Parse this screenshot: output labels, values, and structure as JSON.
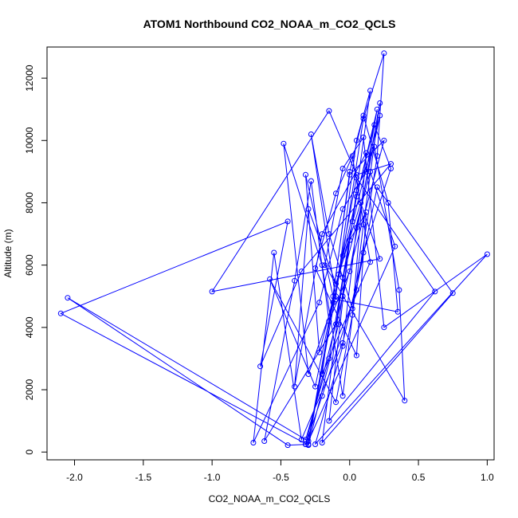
{
  "chart_data": {
    "type": "line",
    "title": "ATOM1 Northbound CO2_NOAA_m_CO2_QCLS",
    "xlabel": "CO2_NOAA_m_CO2_QCLS",
    "ylabel": "Altitude (m)",
    "xlim": [
      -2.2,
      1.05
    ],
    "ylim": [
      -250,
      13000
    ],
    "x_ticks": [
      -2.0,
      -1.5,
      -1.0,
      -0.5,
      0.0,
      0.5,
      1.0
    ],
    "x_tick_labels": [
      "-2.0",
      "-1.5",
      "-1.0",
      "-0.5",
      "0.0",
      "0.5",
      "1.0"
    ],
    "y_ticks": [
      0,
      2000,
      4000,
      6000,
      8000,
      10000,
      12000
    ],
    "y_tick_labels": [
      "0",
      "2000",
      "4000",
      "6000",
      "8000",
      "10000",
      "12000"
    ],
    "series": [
      {
        "name": "CO2_NOAA_m_CO2_QCLS",
        "color": "#0000ff",
        "x": [
          -0.32,
          -0.2,
          0.05,
          0.2,
          0.25,
          0.1,
          -0.05,
          -0.3,
          -0.45,
          -2.05,
          -0.32,
          -0.15,
          0.02,
          0.15,
          0.05,
          -0.1,
          -0.3,
          -0.48,
          -0.2,
          -0.05,
          0.1,
          0.22,
          0.0,
          -0.15,
          -0.28,
          -0.4,
          -0.62,
          -0.1,
          0.05,
          0.18,
          0.3,
          0.1,
          -0.05,
          -0.35,
          -0.55,
          -0.7,
          -0.22,
          -0.05,
          0.12,
          0.2,
          -0.08,
          -0.25,
          -0.58,
          -0.1,
          0.02,
          0.12,
          -0.2,
          -0.4,
          -0.3,
          -0.1,
          0.08,
          0.22,
          -1.0,
          -0.15,
          0.05,
          0.3,
          -0.35,
          -0.65,
          -0.45,
          -2.1,
          -0.3,
          -0.08,
          0.05,
          0.18,
          0.36,
          0.4,
          -0.18,
          -0.05,
          0.1,
          0.25,
          1.0,
          -0.25,
          -0.05,
          0.05,
          0.22,
          -0.22,
          -0.32,
          -0.12,
          0.0,
          0.1,
          0.28,
          0.35,
          -0.1,
          -0.28,
          -0.15,
          0.02,
          0.2,
          0.75,
          -0.2,
          -0.05,
          0.15,
          0.33,
          -0.3,
          -0.12,
          0.05,
          0.62,
          -0.15,
          0.0,
          0.12,
          0.05,
          -0.25,
          -0.1,
          0.02,
          0.15,
          -0.2,
          0.0,
          0.25,
          -0.05,
          -0.32
        ],
        "y": [
          250,
          1800,
          5200,
          9500,
          12800,
          10700,
          6300,
          250,
          220,
          4950,
          400,
          3000,
          7400,
          11600,
          10000,
          5000,
          2500,
          9900,
          6000,
          1800,
          7300,
          11200,
          5800,
          4200,
          8700,
          5500,
          350,
          4100,
          8200,
          10500,
          9100,
          6400,
          3500,
          400,
          6400,
          300,
          4800,
          7800,
          9000,
          11000,
          5700,
          2100,
          5550,
          1600,
          4400,
          9600,
          7000,
          2100,
          7800,
          5400,
          8000,
          6200,
          5150,
          10950,
          8900,
          9250,
          5800,
          2750,
          7400,
          4450,
          220,
          4100,
          8400,
          9800,
          5200,
          1650,
          6000,
          9100,
          10100,
          4000,
          6350,
          250,
          3400,
          7200,
          10800,
          3200,
          8900,
          5000,
          9000,
          10800,
          8000,
          4500,
          4900,
          10200,
          7000,
          4600,
          8500,
          5100,
          300,
          5600,
          9000,
          6600,
          350,
          4800,
          8800,
          5150,
          1000,
          6800,
          7700,
          3100,
          5900,
          8300,
          9500,
          6100,
          2500,
          8900,
          10000,
          5000,
          250
        ]
      }
    ]
  }
}
